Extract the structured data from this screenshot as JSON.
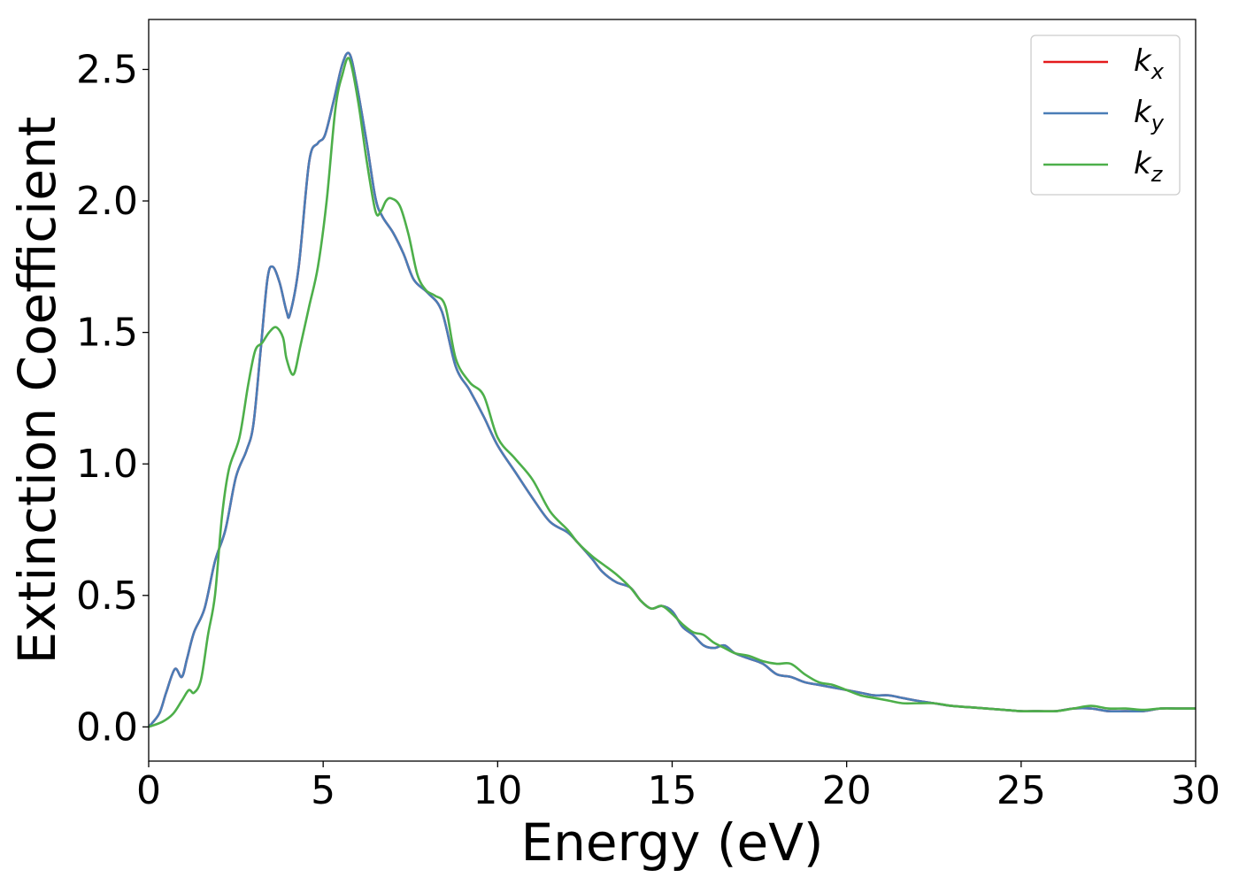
{
  "chart_data": {
    "type": "line",
    "title": "",
    "xlabel": "Energy (eV)",
    "ylabel": "Extinction Coefficient",
    "xlim": [
      0,
      30
    ],
    "ylim": [
      -0.13,
      2.69
    ],
    "xticks": [
      0,
      5,
      10,
      15,
      20,
      25,
      30
    ],
    "xtick_labels": [
      "0",
      "5",
      "10",
      "15",
      "20",
      "25",
      "30"
    ],
    "yticks": [
      0.0,
      0.5,
      1.0,
      1.5,
      2.0,
      2.5
    ],
    "ytick_labels": [
      "0.0",
      "0.5",
      "1.0",
      "1.5",
      "2.0",
      "2.5"
    ],
    "grid": false,
    "legend_position": "top-right",
    "series": [
      {
        "name": "k_x",
        "legend_base": "k",
        "legend_sub": "x",
        "color": "#e41a1c",
        "x": [
          0,
          0.3,
          0.5,
          0.75,
          0.95,
          1.1,
          1.3,
          1.6,
          1.9,
          2.2,
          2.5,
          2.8,
          3.0,
          3.2,
          3.4,
          3.55,
          3.75,
          3.95,
          4.05,
          4.3,
          4.6,
          4.85,
          5.05,
          5.3,
          5.55,
          5.75,
          5.95,
          6.25,
          6.5,
          6.7,
          7.0,
          7.3,
          7.6,
          8.0,
          8.4,
          8.8,
          9.2,
          9.6,
          10.0,
          10.5,
          11.0,
          11.5,
          12.0,
          12.3,
          12.7,
          13.0,
          13.4,
          13.8,
          14.1,
          14.4,
          14.7,
          15.0,
          15.3,
          15.6,
          15.9,
          16.2,
          16.5,
          16.8,
          17.2,
          17.6,
          18.0,
          18.4,
          18.8,
          19.2,
          19.6,
          20.0,
          20.4,
          20.8,
          21.2,
          21.6,
          22.0,
          22.5,
          23.0,
          23.5,
          24.0,
          24.5,
          25.0,
          25.5,
          26.0,
          26.5,
          27.0,
          27.5,
          28.0,
          28.5,
          29.0,
          29.5,
          30.0
        ],
        "y": [
          0.0,
          0.05,
          0.13,
          0.22,
          0.19,
          0.26,
          0.36,
          0.45,
          0.63,
          0.75,
          0.95,
          1.05,
          1.15,
          1.42,
          1.7,
          1.75,
          1.69,
          1.58,
          1.57,
          1.75,
          2.15,
          2.22,
          2.25,
          2.38,
          2.52,
          2.56,
          2.45,
          2.22,
          2.01,
          1.94,
          1.88,
          1.8,
          1.7,
          1.65,
          1.58,
          1.37,
          1.28,
          1.18,
          1.07,
          0.97,
          0.87,
          0.78,
          0.74,
          0.7,
          0.64,
          0.59,
          0.55,
          0.53,
          0.48,
          0.45,
          0.46,
          0.44,
          0.38,
          0.35,
          0.31,
          0.3,
          0.31,
          0.28,
          0.26,
          0.24,
          0.2,
          0.19,
          0.17,
          0.16,
          0.15,
          0.14,
          0.13,
          0.12,
          0.12,
          0.11,
          0.1,
          0.09,
          0.08,
          0.075,
          0.07,
          0.065,
          0.06,
          0.06,
          0.06,
          0.07,
          0.07,
          0.06,
          0.06,
          0.06,
          0.07,
          0.07,
          0.07
        ]
      },
      {
        "name": "k_y",
        "legend_base": "k",
        "legend_sub": "y",
        "color": "#4a7db7",
        "x": [
          0,
          0.3,
          0.5,
          0.75,
          0.95,
          1.1,
          1.3,
          1.6,
          1.9,
          2.2,
          2.5,
          2.8,
          3.0,
          3.2,
          3.4,
          3.55,
          3.75,
          3.95,
          4.05,
          4.3,
          4.6,
          4.85,
          5.05,
          5.3,
          5.55,
          5.75,
          5.95,
          6.25,
          6.5,
          6.7,
          7.0,
          7.3,
          7.6,
          8.0,
          8.4,
          8.8,
          9.2,
          9.6,
          10.0,
          10.5,
          11.0,
          11.5,
          12.0,
          12.3,
          12.7,
          13.0,
          13.4,
          13.8,
          14.1,
          14.4,
          14.7,
          15.0,
          15.3,
          15.6,
          15.9,
          16.2,
          16.5,
          16.8,
          17.2,
          17.6,
          18.0,
          18.4,
          18.8,
          19.2,
          19.6,
          20.0,
          20.4,
          20.8,
          21.2,
          21.6,
          22.0,
          22.5,
          23.0,
          23.5,
          24.0,
          24.5,
          25.0,
          25.5,
          26.0,
          26.5,
          27.0,
          27.5,
          28.0,
          28.5,
          29.0,
          29.5,
          30.0
        ],
        "y": [
          0.0,
          0.05,
          0.13,
          0.22,
          0.19,
          0.26,
          0.36,
          0.45,
          0.63,
          0.75,
          0.95,
          1.05,
          1.15,
          1.42,
          1.7,
          1.75,
          1.69,
          1.58,
          1.57,
          1.75,
          2.15,
          2.22,
          2.25,
          2.38,
          2.52,
          2.56,
          2.45,
          2.22,
          2.01,
          1.94,
          1.88,
          1.8,
          1.7,
          1.65,
          1.58,
          1.37,
          1.28,
          1.18,
          1.07,
          0.97,
          0.87,
          0.78,
          0.74,
          0.7,
          0.64,
          0.59,
          0.55,
          0.53,
          0.48,
          0.45,
          0.46,
          0.44,
          0.38,
          0.35,
          0.31,
          0.3,
          0.31,
          0.28,
          0.26,
          0.24,
          0.2,
          0.19,
          0.17,
          0.16,
          0.15,
          0.14,
          0.13,
          0.12,
          0.12,
          0.11,
          0.1,
          0.09,
          0.08,
          0.075,
          0.07,
          0.065,
          0.06,
          0.06,
          0.06,
          0.07,
          0.07,
          0.06,
          0.06,
          0.06,
          0.07,
          0.07,
          0.07
        ]
      },
      {
        "name": "k_z",
        "legend_base": "k",
        "legend_sub": "z",
        "color": "#4daf4a",
        "x": [
          0,
          0.4,
          0.7,
          0.95,
          1.15,
          1.3,
          1.5,
          1.7,
          1.9,
          2.1,
          2.3,
          2.6,
          2.85,
          3.05,
          3.25,
          3.45,
          3.65,
          3.85,
          3.95,
          4.15,
          4.35,
          4.6,
          4.85,
          5.1,
          5.35,
          5.55,
          5.75,
          6.0,
          6.25,
          6.5,
          6.65,
          6.8,
          6.95,
          7.2,
          7.45,
          7.7,
          7.95,
          8.2,
          8.5,
          8.8,
          9.2,
          9.6,
          10.0,
          10.5,
          11.0,
          11.5,
          12.0,
          12.3,
          12.7,
          13.0,
          13.4,
          13.8,
          14.1,
          14.4,
          14.7,
          15.0,
          15.3,
          15.6,
          15.9,
          16.2,
          16.5,
          16.8,
          17.2,
          17.6,
          18.0,
          18.4,
          18.8,
          19.2,
          19.6,
          20.0,
          20.4,
          20.8,
          21.2,
          21.6,
          22.0,
          22.5,
          23.0,
          23.5,
          24.0,
          24.5,
          25.0,
          25.5,
          26.0,
          26.5,
          27.0,
          27.5,
          28.0,
          28.5,
          29.0,
          29.5,
          30.0
        ],
        "y": [
          0.0,
          0.02,
          0.05,
          0.1,
          0.14,
          0.13,
          0.18,
          0.35,
          0.5,
          0.8,
          0.98,
          1.1,
          1.3,
          1.43,
          1.46,
          1.5,
          1.52,
          1.48,
          1.4,
          1.34,
          1.45,
          1.6,
          1.75,
          2.0,
          2.35,
          2.48,
          2.54,
          2.38,
          2.15,
          1.96,
          1.96,
          2.0,
          2.01,
          1.98,
          1.87,
          1.72,
          1.66,
          1.64,
          1.6,
          1.4,
          1.31,
          1.26,
          1.1,
          1.02,
          0.94,
          0.82,
          0.75,
          0.7,
          0.65,
          0.62,
          0.58,
          0.53,
          0.48,
          0.45,
          0.46,
          0.43,
          0.39,
          0.36,
          0.35,
          0.32,
          0.3,
          0.28,
          0.27,
          0.25,
          0.24,
          0.24,
          0.2,
          0.17,
          0.16,
          0.14,
          0.12,
          0.11,
          0.1,
          0.09,
          0.09,
          0.09,
          0.08,
          0.075,
          0.07,
          0.065,
          0.06,
          0.06,
          0.06,
          0.07,
          0.08,
          0.07,
          0.07,
          0.065,
          0.07,
          0.07,
          0.07
        ]
      }
    ]
  }
}
